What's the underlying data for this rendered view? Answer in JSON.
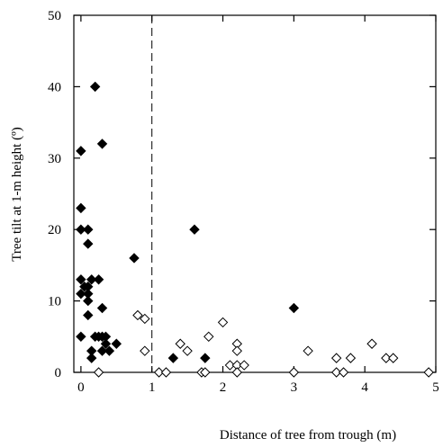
{
  "chart_data": {
    "type": "scatter",
    "xlabel": "Distance of tree from trough (m)",
    "ylabel": "Tree tilt at 1-m height (º)",
    "xlim": [
      -0.1,
      5.0
    ],
    "ylim": [
      0,
      50
    ],
    "x_ticks": [
      0,
      1,
      2,
      3,
      4,
      5
    ],
    "y_ticks": [
      0,
      10,
      20,
      30,
      40,
      50
    ],
    "x_tick_labels": [
      "0",
      "1",
      "2",
      "3",
      "4",
      "5"
    ],
    "y_tick_labels": [
      "0",
      "10",
      "20",
      "30",
      "40",
      "50"
    ],
    "reference_line": {
      "x": 1,
      "style": "dashed"
    },
    "marker_shape": "diamond",
    "grid": false,
    "legend": null,
    "series": [
      {
        "marker": "filled-diamond",
        "color": "#000000",
        "points": [
          [
            0.0,
            31
          ],
          [
            0.0,
            23
          ],
          [
            0.0,
            20
          ],
          [
            0.0,
            13
          ],
          [
            0.0,
            11
          ],
          [
            0.0,
            5
          ],
          [
            0.05,
            12
          ],
          [
            0.1,
            20
          ],
          [
            0.1,
            18
          ],
          [
            0.1,
            12
          ],
          [
            0.1,
            11
          ],
          [
            0.1,
            10
          ],
          [
            0.1,
            8
          ],
          [
            0.15,
            13
          ],
          [
            0.15,
            3
          ],
          [
            0.15,
            2
          ],
          [
            0.2,
            40
          ],
          [
            0.2,
            5
          ],
          [
            0.25,
            13
          ],
          [
            0.25,
            5
          ],
          [
            0.3,
            32
          ],
          [
            0.3,
            9
          ],
          [
            0.3,
            5
          ],
          [
            0.3,
            3
          ],
          [
            0.35,
            5
          ],
          [
            0.35,
            4
          ],
          [
            0.4,
            3
          ],
          [
            0.5,
            4
          ],
          [
            0.75,
            16
          ],
          [
            1.3,
            2
          ],
          [
            1.6,
            20
          ],
          [
            1.75,
            2
          ],
          [
            3.0,
            9
          ]
        ]
      },
      {
        "marker": "open-diamond",
        "color": "#000000",
        "points": [
          [
            0.25,
            0
          ],
          [
            0.8,
            8
          ],
          [
            0.9,
            7.5
          ],
          [
            0.9,
            3
          ],
          [
            1.1,
            0
          ],
          [
            1.2,
            0
          ],
          [
            1.4,
            4
          ],
          [
            1.5,
            3
          ],
          [
            1.7,
            0
          ],
          [
            1.75,
            0
          ],
          [
            1.8,
            5
          ],
          [
            2.0,
            7
          ],
          [
            2.1,
            1
          ],
          [
            2.2,
            4
          ],
          [
            2.2,
            3
          ],
          [
            2.2,
            1
          ],
          [
            2.2,
            0
          ],
          [
            2.3,
            1
          ],
          [
            3.0,
            0
          ],
          [
            3.2,
            3
          ],
          [
            3.6,
            2
          ],
          [
            3.6,
            0
          ],
          [
            3.7,
            0
          ],
          [
            3.8,
            2
          ],
          [
            4.1,
            4
          ],
          [
            4.3,
            2
          ],
          [
            4.4,
            2
          ],
          [
            4.9,
            0
          ]
        ]
      }
    ]
  }
}
